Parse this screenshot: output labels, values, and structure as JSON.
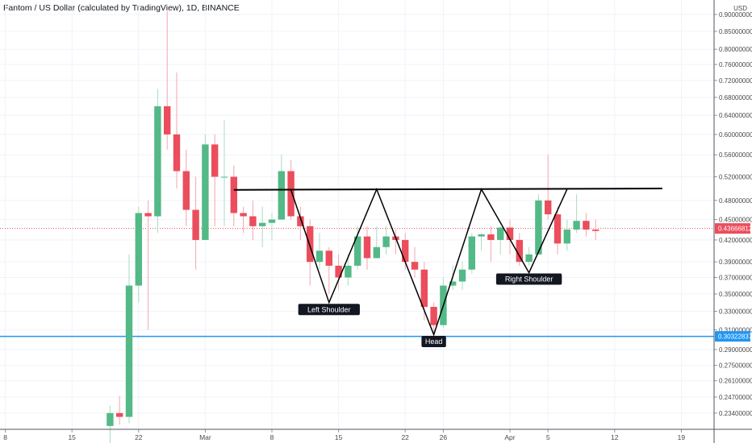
{
  "header": {
    "title": "Fantom / US Dollar (calculated by TradingView), 1D, BINANCE"
  },
  "colors": {
    "up": "#53b987",
    "down": "#eb4d5c",
    "hline": "#2196f3",
    "last_price_line": "#eb4d5c",
    "pattern": "#000000",
    "label_bg": "#131722",
    "grid": "#f0f3fa"
  },
  "chart_data": {
    "type": "candlestick",
    "title": "Fantom / US Dollar (calculated by TradingView), 1D, BINANCE",
    "currency": "USD",
    "y_scale": "log",
    "ylim": [
      0.2215,
      0.945
    ],
    "x_tick_labels": [
      "8",
      "15",
      "22",
      "Mar",
      "8",
      "15",
      "22",
      "26",
      "Apr",
      "5",
      "12",
      "19"
    ],
    "x_tick_days": [
      -13,
      -6,
      1,
      8,
      15,
      22,
      29,
      33,
      40,
      44,
      51,
      58
    ],
    "y_tick_labels": [
      "0.23400000",
      "0.24700000",
      "0.26100000",
      "0.27500000",
      "0.29000000",
      "0.31000000",
      "0.33000000",
      "0.35000000",
      "0.37000000",
      "0.39000000",
      "0.42000000",
      "0.45000000",
      "0.48000000",
      "0.52000000",
      "0.56000000",
      "0.60000000",
      "0.64000000",
      "0.68000000",
      "0.72000000",
      "0.76000000",
      "0.80000000",
      "0.85000000",
      "0.90000000"
    ],
    "y_tick_values": [
      0.234,
      0.247,
      0.261,
      0.275,
      0.29,
      0.31,
      0.33,
      0.35,
      0.37,
      0.39,
      0.42,
      0.45,
      0.48,
      0.52,
      0.56,
      0.6,
      0.64,
      0.68,
      0.72,
      0.76,
      0.8,
      0.85,
      0.9
    ],
    "candles": [
      {
        "day": -2,
        "o": 0.224,
        "h": 0.24,
        "l": 0.2,
        "c": 0.234
      },
      {
        "day": -1,
        "o": 0.234,
        "h": 0.248,
        "l": 0.225,
        "c": 0.231
      },
      {
        "day": 0,
        "o": 0.231,
        "h": 0.4,
        "l": 0.226,
        "c": 0.36
      },
      {
        "day": 1,
        "o": 0.36,
        "h": 0.47,
        "l": 0.34,
        "c": 0.46
      },
      {
        "day": 2,
        "o": 0.46,
        "h": 0.48,
        "l": 0.31,
        "c": 0.455
      },
      {
        "day": 3,
        "o": 0.455,
        "h": 0.7,
        "l": 0.43,
        "c": 0.66
      },
      {
        "day": 4,
        "o": 0.66,
        "h": 0.91,
        "l": 0.57,
        "c": 0.6
      },
      {
        "day": 5,
        "o": 0.6,
        "h": 0.74,
        "l": 0.5,
        "c": 0.53
      },
      {
        "day": 6,
        "o": 0.53,
        "h": 0.57,
        "l": 0.44,
        "c": 0.465
      },
      {
        "day": 7,
        "o": 0.465,
        "h": 0.52,
        "l": 0.38,
        "c": 0.42
      },
      {
        "day": 8,
        "o": 0.42,
        "h": 0.6,
        "l": 0.42,
        "c": 0.58
      },
      {
        "day": 9,
        "o": 0.58,
        "h": 0.6,
        "l": 0.44,
        "c": 0.52
      },
      {
        "day": 10,
        "o": 0.52,
        "h": 0.63,
        "l": 0.44,
        "c": 0.52
      },
      {
        "day": 11,
        "o": 0.52,
        "h": 0.54,
        "l": 0.44,
        "c": 0.46
      },
      {
        "day": 12,
        "o": 0.46,
        "h": 0.47,
        "l": 0.43,
        "c": 0.455
      },
      {
        "day": 13,
        "o": 0.455,
        "h": 0.48,
        "l": 0.42,
        "c": 0.44
      },
      {
        "day": 14,
        "o": 0.44,
        "h": 0.47,
        "l": 0.41,
        "c": 0.445
      },
      {
        "day": 15,
        "o": 0.445,
        "h": 0.46,
        "l": 0.42,
        "c": 0.45
      },
      {
        "day": 16,
        "o": 0.45,
        "h": 0.56,
        "l": 0.45,
        "c": 0.53
      },
      {
        "day": 17,
        "o": 0.53,
        "h": 0.55,
        "l": 0.45,
        "c": 0.455
      },
      {
        "day": 18,
        "o": 0.455,
        "h": 0.47,
        "l": 0.42,
        "c": 0.44
      },
      {
        "day": 19,
        "o": 0.44,
        "h": 0.45,
        "l": 0.36,
        "c": 0.39
      },
      {
        "day": 20,
        "o": 0.39,
        "h": 0.43,
        "l": 0.38,
        "c": 0.405
      },
      {
        "day": 21,
        "o": 0.405,
        "h": 0.41,
        "l": 0.35,
        "c": 0.385
      },
      {
        "day": 22,
        "o": 0.385,
        "h": 0.4,
        "l": 0.355,
        "c": 0.37
      },
      {
        "day": 23,
        "o": 0.37,
        "h": 0.4,
        "l": 0.36,
        "c": 0.385
      },
      {
        "day": 24,
        "o": 0.385,
        "h": 0.44,
        "l": 0.38,
        "c": 0.425
      },
      {
        "day": 25,
        "o": 0.425,
        "h": 0.44,
        "l": 0.38,
        "c": 0.395
      },
      {
        "day": 26,
        "o": 0.395,
        "h": 0.44,
        "l": 0.395,
        "c": 0.41
      },
      {
        "day": 27,
        "o": 0.41,
        "h": 0.44,
        "l": 0.4,
        "c": 0.425
      },
      {
        "day": 28,
        "o": 0.425,
        "h": 0.435,
        "l": 0.4,
        "c": 0.42
      },
      {
        "day": 29,
        "o": 0.42,
        "h": 0.43,
        "l": 0.38,
        "c": 0.39
      },
      {
        "day": 30,
        "o": 0.39,
        "h": 0.41,
        "l": 0.37,
        "c": 0.38
      },
      {
        "day": 31,
        "o": 0.38,
        "h": 0.39,
        "l": 0.32,
        "c": 0.335
      },
      {
        "day": 32,
        "o": 0.335,
        "h": 0.34,
        "l": 0.305,
        "c": 0.315
      },
      {
        "day": 33,
        "o": 0.315,
        "h": 0.37,
        "l": 0.312,
        "c": 0.36
      },
      {
        "day": 34,
        "o": 0.36,
        "h": 0.385,
        "l": 0.355,
        "c": 0.365
      },
      {
        "day": 35,
        "o": 0.365,
        "h": 0.39,
        "l": 0.355,
        "c": 0.38
      },
      {
        "day": 36,
        "o": 0.38,
        "h": 0.43,
        "l": 0.375,
        "c": 0.425
      },
      {
        "day": 37,
        "o": 0.425,
        "h": 0.43,
        "l": 0.405,
        "c": 0.428
      },
      {
        "day": 38,
        "o": 0.428,
        "h": 0.44,
        "l": 0.39,
        "c": 0.42
      },
      {
        "day": 39,
        "o": 0.42,
        "h": 0.44,
        "l": 0.4,
        "c": 0.438
      },
      {
        "day": 40,
        "o": 0.438,
        "h": 0.45,
        "l": 0.4,
        "c": 0.42
      },
      {
        "day": 41,
        "o": 0.42,
        "h": 0.43,
        "l": 0.385,
        "c": 0.39
      },
      {
        "day": 42,
        "o": 0.39,
        "h": 0.41,
        "l": 0.385,
        "c": 0.4
      },
      {
        "day": 43,
        "o": 0.4,
        "h": 0.49,
        "l": 0.4,
        "c": 0.48
      },
      {
        "day": 44,
        "o": 0.48,
        "h": 0.56,
        "l": 0.45,
        "c": 0.458
      },
      {
        "day": 45,
        "o": 0.458,
        "h": 0.47,
        "l": 0.4,
        "c": 0.415
      },
      {
        "day": 46,
        "o": 0.415,
        "h": 0.45,
        "l": 0.405,
        "c": 0.435
      },
      {
        "day": 47,
        "o": 0.435,
        "h": 0.49,
        "l": 0.43,
        "c": 0.448
      },
      {
        "day": 48,
        "o": 0.448,
        "h": 0.46,
        "l": 0.425,
        "c": 0.435
      },
      {
        "day": 49,
        "o": 0.435,
        "h": 0.45,
        "l": 0.42,
        "c": 0.433
      }
    ],
    "last_price": 0.43666812,
    "last_price_label": "0.43666812",
    "support_level": 0.30322837,
    "support_label": "0.30322837",
    "neckline": {
      "day_start": 11,
      "day_end": 56,
      "price_start": 0.4975,
      "price_end": 0.4998
    },
    "pattern_path": [
      {
        "day": 17,
        "price": 0.4975
      },
      {
        "day": 21,
        "price": 0.34
      },
      {
        "day": 26,
        "price": 0.4985
      },
      {
        "day": 32,
        "price": 0.305
      },
      {
        "day": 37,
        "price": 0.4985
      },
      {
        "day": 42,
        "price": 0.376
      },
      {
        "day": 46,
        "price": 0.4985
      }
    ],
    "annotations": [
      {
        "text": "Left Shoulder",
        "day": 21,
        "price": 0.332
      },
      {
        "text": "Head",
        "day": 32,
        "price": 0.298
      },
      {
        "text": "Right Shoulder",
        "day": 42,
        "price": 0.368
      }
    ],
    "currency_label": "USD",
    "grid": true
  }
}
